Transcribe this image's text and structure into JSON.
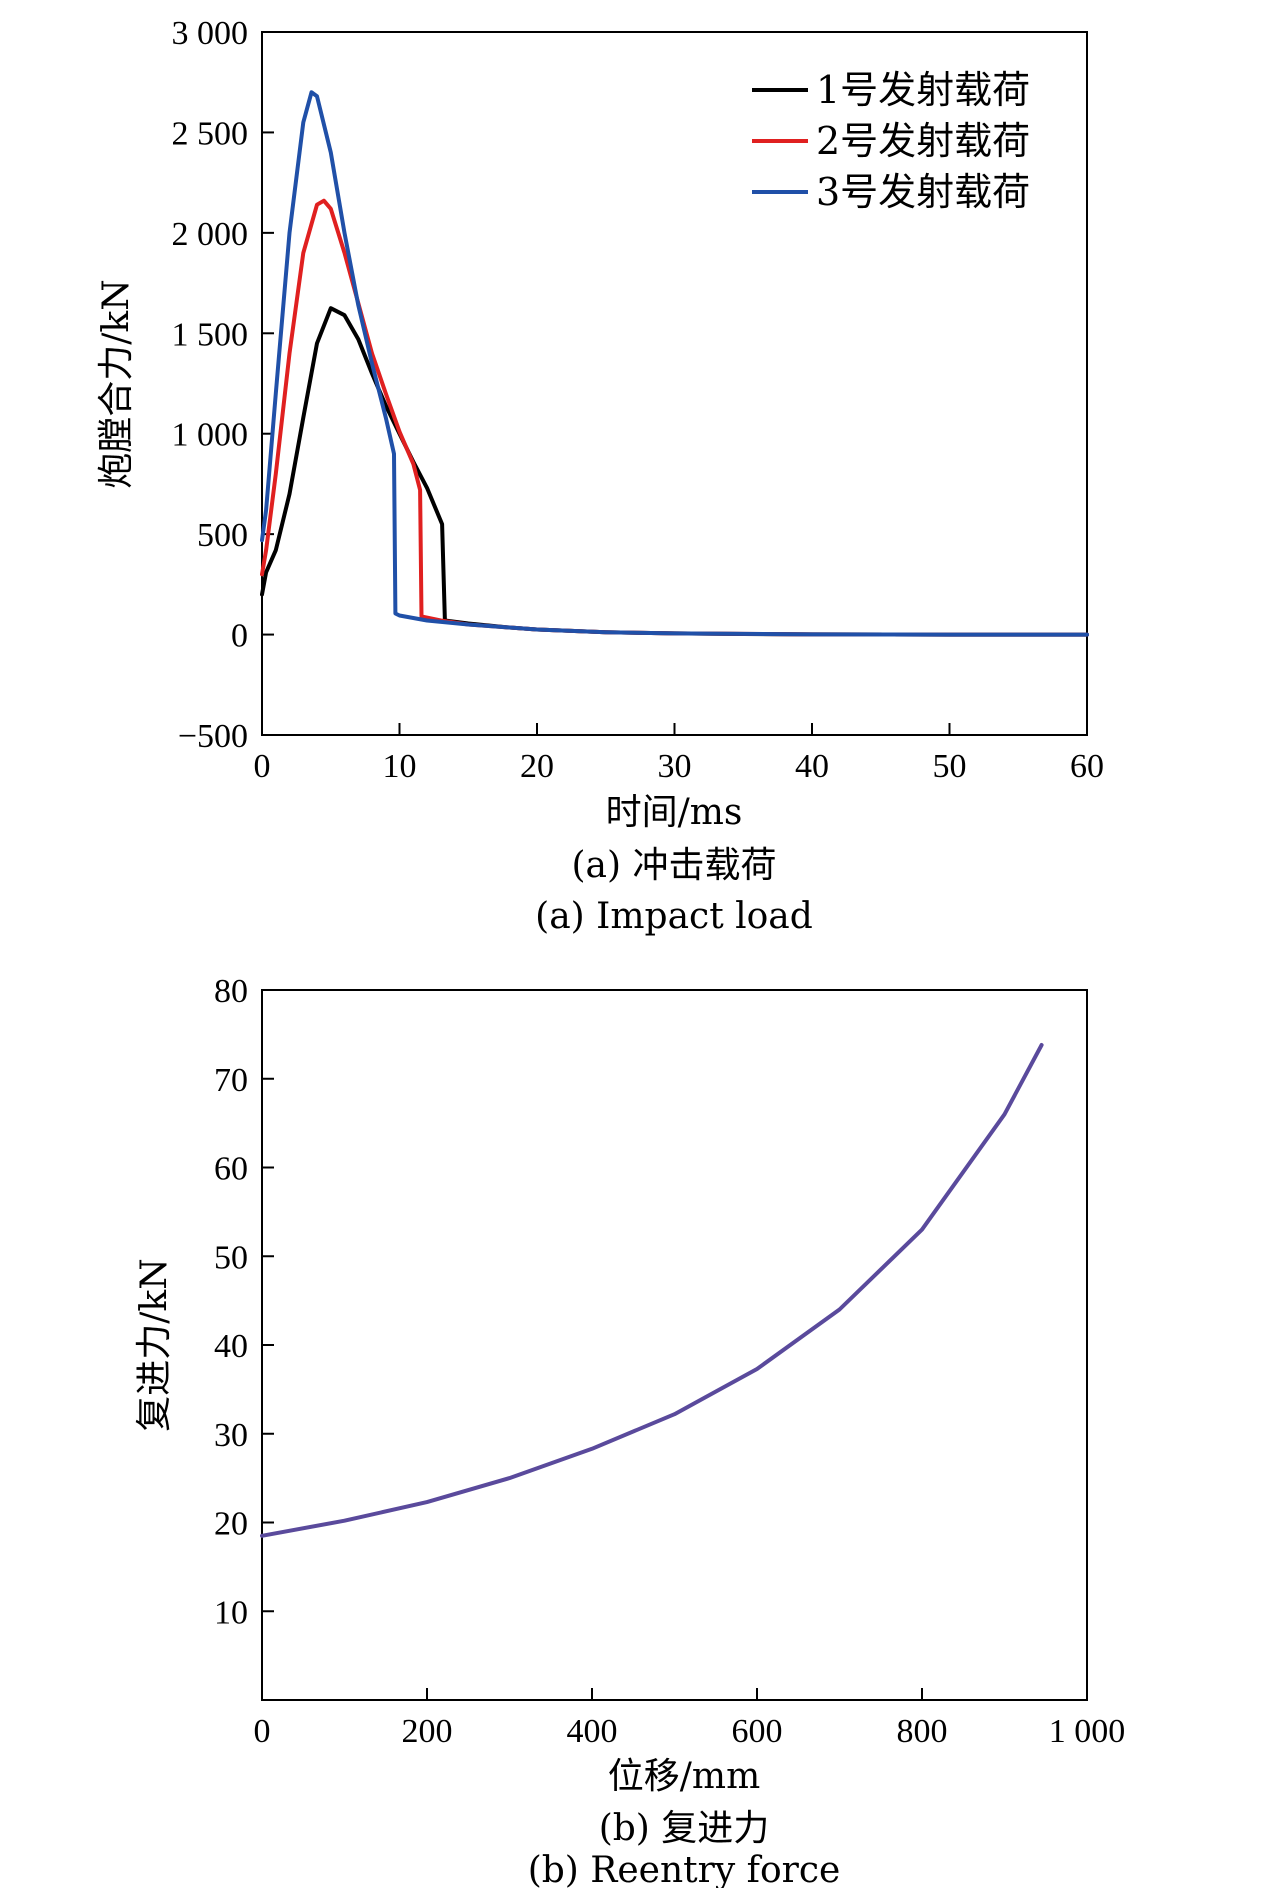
{
  "chart_data": [
    {
      "type": "line",
      "xlabel": "时间/ms",
      "ylabel": "炮膛合力/kN",
      "caption_cn": "(a) 冲击载荷",
      "caption_en": "(a) Impact load",
      "xlim": [
        0,
        60
      ],
      "ylim": [
        -500,
        3000
      ],
      "xticks": [
        0,
        10,
        20,
        30,
        40,
        50,
        60
      ],
      "xtick_labels": [
        "0",
        "10",
        "20",
        "30",
        "40",
        "50",
        "60"
      ],
      "yticks": [
        -500,
        0,
        500,
        1000,
        1500,
        2000,
        2500,
        3000
      ],
      "ytick_labels": [
        "−500",
        "0",
        "500",
        "1 000",
        "1 500",
        "2 000",
        "2 500",
        "3 000"
      ],
      "legend_position": "top-right",
      "series": [
        {
          "name": "1号发射载荷",
          "color": "#000000",
          "points": [
            [
              0,
              200
            ],
            [
              0.3,
              310
            ],
            [
              1,
              420
            ],
            [
              2,
              700
            ],
            [
              3,
              1080
            ],
            [
              4,
              1450
            ],
            [
              5,
              1625
            ],
            [
              6,
              1590
            ],
            [
              7,
              1470
            ],
            [
              8,
              1300
            ],
            [
              9,
              1140
            ],
            [
              10,
              1000
            ],
            [
              11,
              860
            ],
            [
              12,
              730
            ],
            [
              13.1,
              550
            ],
            [
              13.3,
              70
            ],
            [
              15,
              55
            ],
            [
              18,
              35
            ],
            [
              20,
              25
            ],
            [
              25,
              12
            ],
            [
              30,
              6
            ],
            [
              35,
              3
            ],
            [
              40,
              1
            ],
            [
              50,
              0
            ],
            [
              60,
              0
            ]
          ]
        },
        {
          "name": "2号发射载荷",
          "color": "#e02020",
          "points": [
            [
              0,
              300
            ],
            [
              0.3,
              420
            ],
            [
              1,
              800
            ],
            [
              2,
              1400
            ],
            [
              3,
              1900
            ],
            [
              4,
              2140
            ],
            [
              4.5,
              2160
            ],
            [
              5,
              2120
            ],
            [
              6,
              1900
            ],
            [
              7,
              1650
            ],
            [
              8,
              1400
            ],
            [
              9,
              1200
            ],
            [
              10,
              1010
            ],
            [
              11,
              850
            ],
            [
              11.5,
              720
            ],
            [
              11.6,
              90
            ],
            [
              13,
              70
            ],
            [
              15,
              50
            ],
            [
              20,
              25
            ],
            [
              25,
              12
            ],
            [
              30,
              6
            ],
            [
              40,
              1
            ],
            [
              50,
              0
            ],
            [
              60,
              0
            ]
          ]
        },
        {
          "name": "3号发射载荷",
          "color": "#2050a8",
          "points": [
            [
              0,
              470
            ],
            [
              0.3,
              620
            ],
            [
              1,
              1200
            ],
            [
              2,
              2000
            ],
            [
              3,
              2550
            ],
            [
              3.6,
              2700
            ],
            [
              4,
              2680
            ],
            [
              5,
              2400
            ],
            [
              6,
              2000
            ],
            [
              7,
              1640
            ],
            [
              8,
              1350
            ],
            [
              9,
              1080
            ],
            [
              9.6,
              900
            ],
            [
              9.7,
              105
            ],
            [
              10,
              95
            ],
            [
              12,
              70
            ],
            [
              15,
              50
            ],
            [
              20,
              25
            ],
            [
              25,
              12
            ],
            [
              30,
              6
            ],
            [
              40,
              1
            ],
            [
              50,
              0
            ],
            [
              60,
              0
            ]
          ]
        }
      ]
    },
    {
      "type": "line",
      "xlabel": "位移/mm",
      "ylabel": "复进力/kN",
      "caption_cn": "(b) 复进力",
      "caption_en": "(b) Reentry force",
      "xlim": [
        0,
        1000
      ],
      "ylim": [
        0,
        80
      ],
      "xticks": [
        0,
        200,
        400,
        600,
        800,
        1000
      ],
      "xtick_labels": [
        "0",
        "200",
        "400",
        "600",
        "800",
        "1 000"
      ],
      "yticks": [
        10,
        20,
        30,
        40,
        50,
        60,
        70,
        80
      ],
      "ytick_labels": [
        "10",
        "20",
        "30",
        "40",
        "50",
        "60",
        "70",
        "80"
      ],
      "series": [
        {
          "color": "#5a4a9c",
          "points": [
            [
              0,
              18.5
            ],
            [
              100,
              20.2
            ],
            [
              200,
              22.3
            ],
            [
              300,
              25.0
            ],
            [
              400,
              28.3
            ],
            [
              500,
              32.2
            ],
            [
              600,
              37.3
            ],
            [
              700,
              44.0
            ],
            [
              800,
              53.0
            ],
            [
              900,
              66.0
            ],
            [
              945,
              73.8
            ]
          ]
        }
      ]
    }
  ]
}
